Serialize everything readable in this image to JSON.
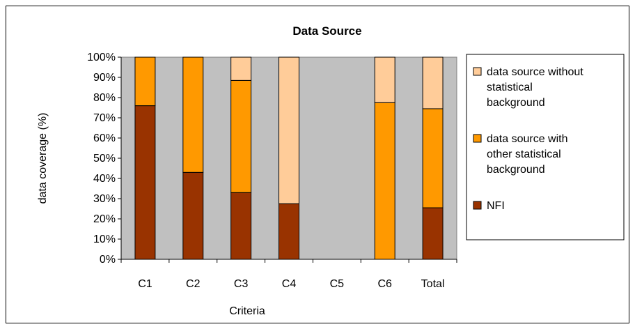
{
  "chart_data": {
    "type": "bar",
    "stacked": true,
    "normalized": true,
    "title": "Data Source",
    "xlabel": "Criteria",
    "ylabel": "data coverage (%)",
    "categories": [
      "C1",
      "C2",
      "C3",
      "C4",
      "C5",
      "C6",
      "Total"
    ],
    "ylim": [
      0,
      100
    ],
    "yticks": [
      "0%",
      "10%",
      "20%",
      "30%",
      "40%",
      "50%",
      "60%",
      "70%",
      "80%",
      "90%",
      "100%"
    ],
    "grid": false,
    "legend_position": "right",
    "plot_background": "#c0c0c0",
    "series": [
      {
        "name": "NFI",
        "color": "#993300",
        "values": [
          76,
          43,
          33,
          27.5,
          0,
          0,
          25.5
        ]
      },
      {
        "name": "data source with other statistical background",
        "color": "#ff9900",
        "values": [
          24,
          57,
          55.5,
          0,
          0,
          77.5,
          49
        ]
      },
      {
        "name": "data source without statistical background",
        "color": "#ffcc99",
        "values": [
          0,
          0,
          11.5,
          72.5,
          0,
          22.5,
          25.5
        ]
      }
    ],
    "legend": [
      {
        "lines": [
          "data source without",
          "statistical",
          "background"
        ],
        "color": "#ffcc99"
      },
      {
        "lines": [
          "data source with",
          "other statistical",
          "background"
        ],
        "color": "#ff9900"
      },
      {
        "lines": [
          "NFI"
        ],
        "color": "#993300"
      }
    ]
  }
}
